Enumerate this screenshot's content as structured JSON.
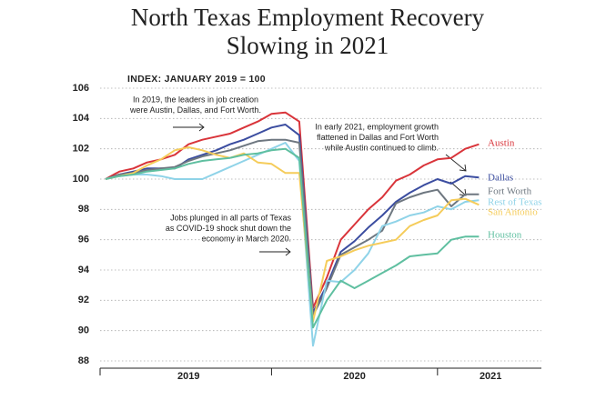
{
  "chart_data": {
    "type": "line",
    "title": [
      "North Texas Employment Recovery",
      "Slowing in 2021"
    ],
    "subtitle": "INDEX: JANUARY 2019 = 100",
    "x": [
      2019,
      2019.083,
      2019.167,
      2019.25,
      2019.333,
      2019.417,
      2019.5,
      2019.583,
      2019.667,
      2019.75,
      2019.833,
      2019.917,
      2020,
      2020.083,
      2020.167,
      2020.25,
      2020.333,
      2020.417,
      2020.5,
      2020.583,
      2020.667,
      2020.75,
      2020.833,
      2020.917,
      2021,
      2021.083,
      2021.167,
      2021.25
    ],
    "series": [
      {
        "name": "Austin",
        "color": "#d9343a",
        "values": [
          100,
          100.5,
          100.7,
          101.1,
          101.3,
          101.6,
          102.3,
          102.6,
          102.8,
          103.0,
          103.4,
          103.8,
          104.3,
          104.4,
          103.8,
          91.5,
          93.5,
          96.0,
          97.0,
          98.0,
          98.8,
          99.9,
          100.3,
          100.9,
          101.3,
          101.4,
          102.0,
          102.3
        ]
      },
      {
        "name": "Dallas",
        "color": "#3b4da0",
        "values": [
          100,
          100.3,
          100.5,
          100.7,
          100.7,
          100.7,
          101.3,
          101.6,
          101.9,
          102.3,
          102.6,
          103.0,
          103.4,
          103.6,
          102.9,
          91.2,
          93.0,
          95.2,
          95.9,
          96.8,
          97.6,
          98.5,
          99.1,
          99.6,
          100.0,
          99.7,
          100.2,
          100.1
        ]
      },
      {
        "name": "Fort Worth",
        "color": "#6e7780",
        "values": [
          100,
          100.3,
          100.4,
          100.6,
          100.7,
          100.8,
          101.2,
          101.5,
          101.7,
          101.9,
          102.2,
          102.5,
          102.6,
          102.6,
          102.4,
          91.0,
          92.8,
          95.0,
          95.5,
          96.0,
          96.6,
          98.4,
          98.8,
          99.1,
          99.3,
          98.2,
          99.0,
          99.0
        ]
      },
      {
        "name": "Rest of Texas",
        "color": "#8fd3e8",
        "values": [
          100,
          100.2,
          100.3,
          100.3,
          100.2,
          100.0,
          100.0,
          100.0,
          100.4,
          100.8,
          101.2,
          101.6,
          102.0,
          102.4,
          101.2,
          89.0,
          93.3,
          93.2,
          94.0,
          95.1,
          96.9,
          97.2,
          97.6,
          97.8,
          98.2,
          98.0,
          98.5,
          98.6
        ]
      },
      {
        "name": "San Antonio",
        "color": "#f5cc5a",
        "values": [
          100,
          100.2,
          100.4,
          100.9,
          101.3,
          101.9,
          102.1,
          101.9,
          101.6,
          101.4,
          101.7,
          101.1,
          101.0,
          100.4,
          100.4,
          90.6,
          94.6,
          94.9,
          95.3,
          95.6,
          95.8,
          96.0,
          96.9,
          97.3,
          97.6,
          98.6,
          98.7,
          98.3
        ]
      },
      {
        "name": "Houston",
        "color": "#5fbfa0",
        "values": [
          100,
          100.2,
          100.3,
          100.5,
          100.6,
          100.7,
          101.0,
          101.2,
          101.3,
          101.4,
          101.6,
          101.7,
          101.9,
          102.0,
          101.4,
          90.2,
          92.0,
          93.3,
          92.8,
          93.3,
          93.8,
          94.3,
          94.9,
          95.0,
          95.1,
          96.0,
          96.2,
          96.2
        ]
      }
    ],
    "annotations": [
      [
        "In 2019, the leaders in job creation",
        "were Austin, Dallas, and Fort Worth."
      ],
      [
        "In early 2021, employment growth",
        "flattened in Dallas and Fort Worth",
        "while Austin continued to climb."
      ],
      [
        "Jobs plunged in all parts of Texas",
        "as COVID-19 shock shut down the",
        "economy in March 2020."
      ]
    ],
    "xlim": [
      2018.967,
      2021.626
    ],
    "xticks": [
      {
        "value": 2019.5,
        "label": "2019"
      },
      {
        "value": 2020.5,
        "label": "2020"
      },
      {
        "value": 2021.32,
        "label": "2021"
      }
    ],
    "ylim": [
      88,
      106
    ],
    "yticks": [
      88,
      90,
      92,
      94,
      96,
      98,
      100,
      102,
      104,
      106
    ],
    "grid": true
  }
}
